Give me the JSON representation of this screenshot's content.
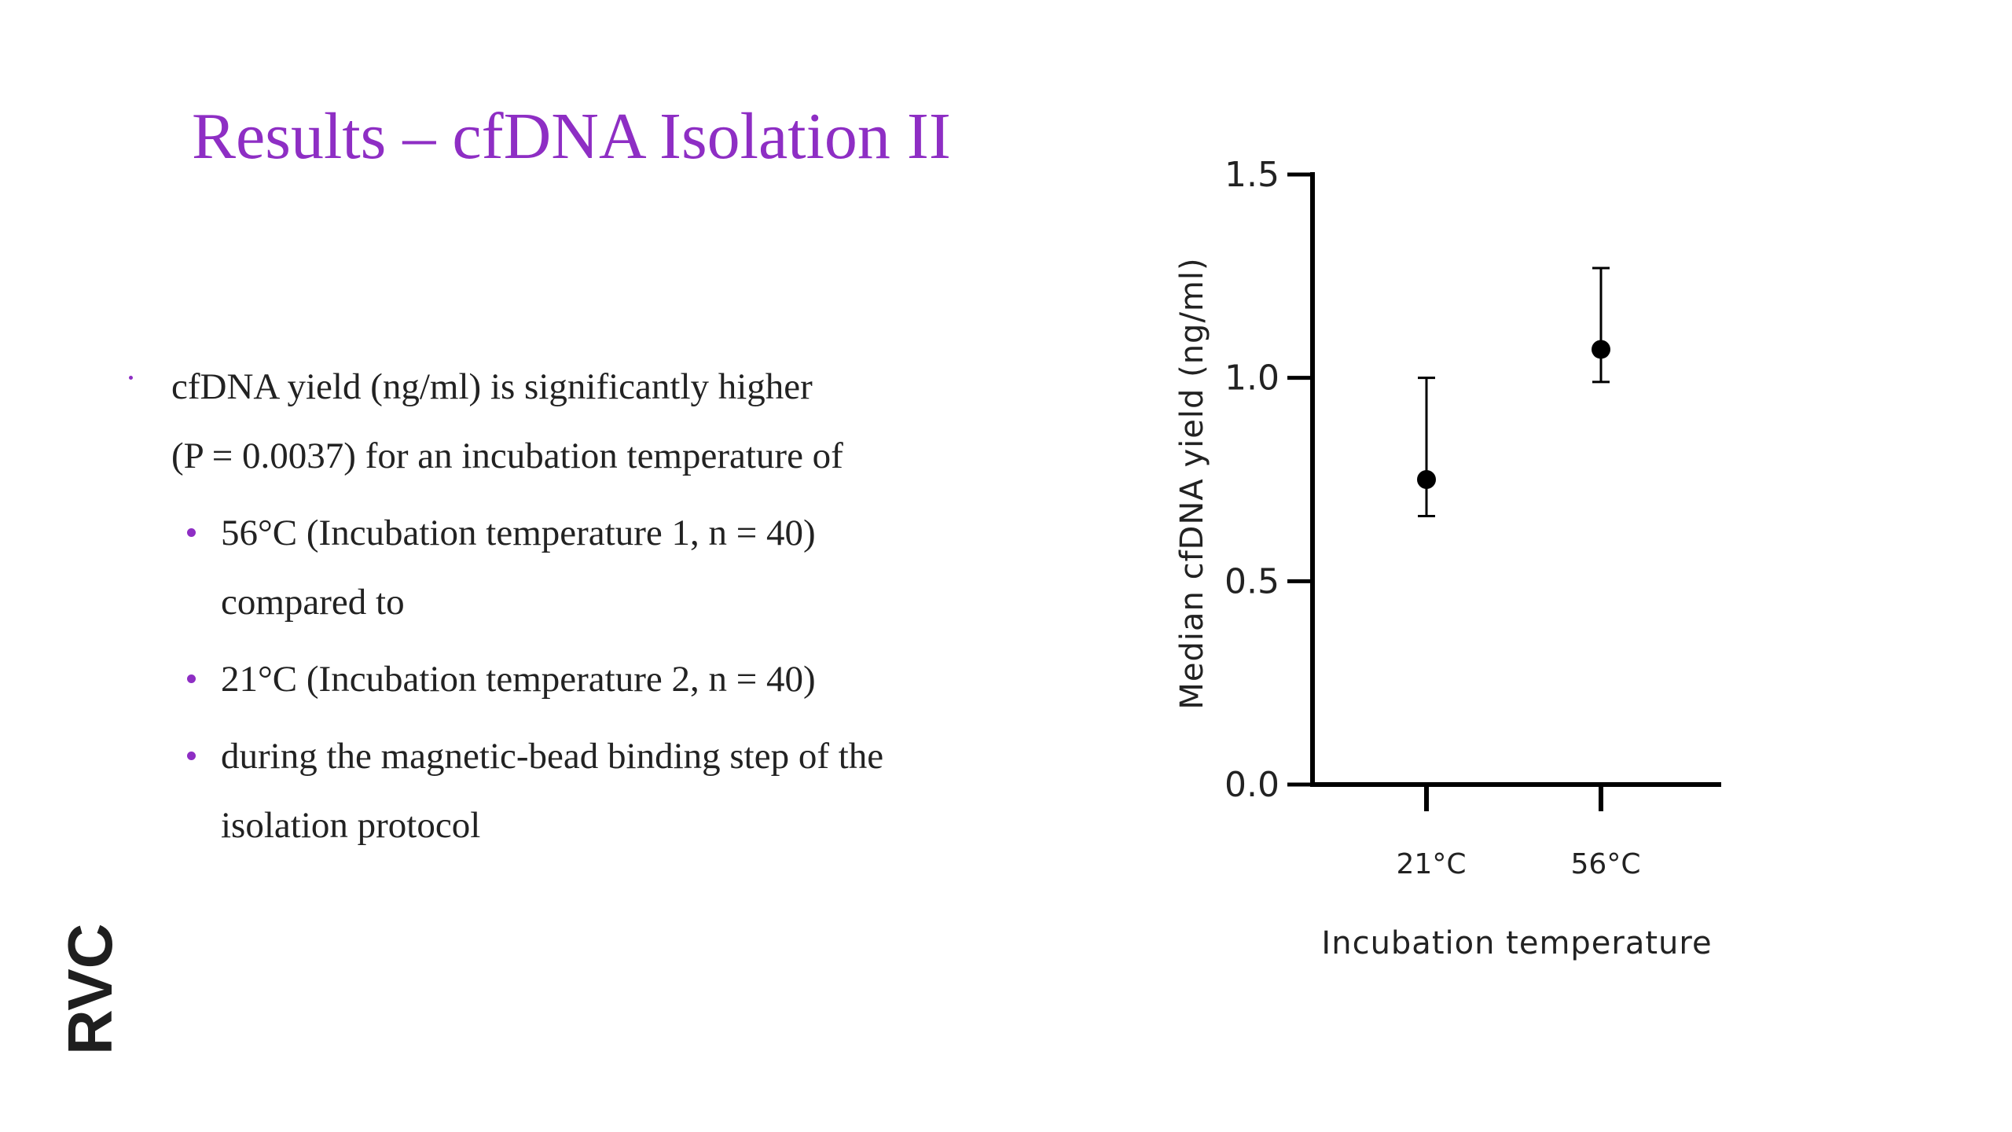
{
  "slide": {
    "title": "Results – cfDNA Isolation II",
    "bullets": [
      {
        "level": 1,
        "lines": [
          "cfDNA yield (ng/ml) is significantly higher",
          "(P = 0.0037) for an incubation temperature of"
        ]
      },
      {
        "level": 2,
        "lines": [
          "56°C (Incubation temperature 1, n = 40)",
          "compared to"
        ]
      },
      {
        "level": 2,
        "lines": [
          "21°C (Incubation temperature 2, n = 40)"
        ]
      },
      {
        "level": 2,
        "lines": [
          "during the magnetic-bead binding step of the",
          "isolation protocol"
        ]
      }
    ],
    "logo_text": "RVC",
    "colors": {
      "accent": "#8e2ec4",
      "logo": "#1f1f1f",
      "text": "#222222"
    }
  },
  "chart_data": {
    "type": "scatter",
    "categories": [
      "21°C",
      "56°C"
    ],
    "values": [
      0.75,
      1.07
    ],
    "error_low": [
      0.66,
      0.99
    ],
    "error_high": [
      1.0,
      1.27
    ],
    "xlabel": "Incubation temperature",
    "ylabel": "Median cfDNA yield (ng/ml)",
    "ylim": [
      0.0,
      1.5
    ],
    "yticks": [
      "0.0",
      "0.5",
      "1.0",
      "1.5"
    ],
    "grid": false
  }
}
